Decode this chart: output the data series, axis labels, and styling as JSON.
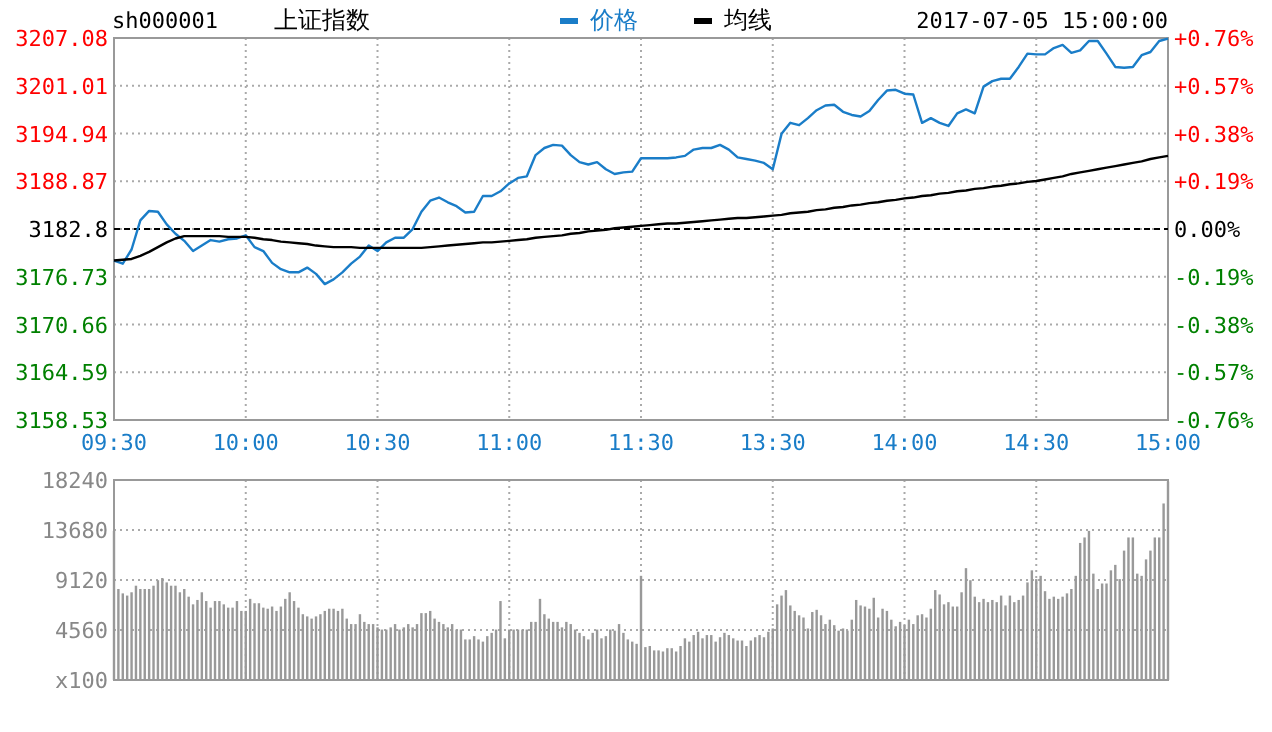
{
  "chart_data": [
    {
      "type": "line",
      "title": "上证指数",
      "subtitle": "sh000001",
      "annotations": [
        "2017-07-05 15:00:00"
      ],
      "legend": "top",
      "grid": true,
      "categories": [
        "09:30",
        null,
        null,
        null,
        null,
        null,
        null,
        null,
        null,
        null,
        null,
        null,
        null,
        null,
        null,
        "10:00",
        null,
        null,
        null,
        null,
        null,
        null,
        null,
        null,
        null,
        null,
        null,
        null,
        null,
        null,
        "10:30",
        null,
        null,
        null,
        null,
        null,
        null,
        null,
        null,
        null,
        null,
        null,
        null,
        null,
        null,
        "11:00",
        null,
        null,
        null,
        null,
        null,
        null,
        null,
        null,
        null,
        null,
        null,
        null,
        null,
        null,
        "11:30",
        null,
        null,
        null,
        null,
        null,
        null,
        null,
        null,
        null,
        null,
        null,
        null,
        null,
        null,
        "13:30",
        null,
        null,
        null,
        null,
        null,
        null,
        null,
        null,
        null,
        null,
        null,
        null,
        null,
        null,
        "14:00",
        null,
        null,
        null,
        null,
        null,
        null,
        null,
        null,
        null,
        null,
        null,
        null,
        null,
        null,
        "14:30",
        null,
        null,
        null,
        null,
        null,
        null,
        null,
        null,
        null,
        null,
        null,
        null,
        null,
        null,
        "15:00"
      ],
      "ylim": [
        3158.53,
        3207.08
      ],
      "yticks": [
        3158.53,
        3164.59,
        3170.66,
        3176.73,
        3182.8,
        3188.87,
        3194.94,
        3201.01,
        3207.08
      ],
      "y2lim": [
        -0.76,
        0.76
      ],
      "y2ticks": [
        {
          "value": -0.76,
          "label": "-0.76%"
        },
        {
          "value": -0.57,
          "label": "-0.57%"
        },
        {
          "value": -0.38,
          "label": "-0.38%"
        },
        {
          "value": -0.19,
          "label": "-0.19%"
        },
        {
          "value": 0,
          "label": "0.00%"
        },
        {
          "value": 0.19,
          "label": "+0.19%"
        },
        {
          "value": 0.38,
          "label": "+0.38%"
        },
        {
          "value": 0.57,
          "label": "+0.57%"
        },
        {
          "value": 0.76,
          "label": "+0.76%"
        }
      ],
      "ref_lines": [
        {
          "axis": "y",
          "value": 3182.8,
          "color": "#000000",
          "line_style": "dashed"
        }
      ],
      "series": [
        {
          "name": "价格",
          "color": "#1a7dc8",
          "values": [
            3178.8,
            3178.4,
            3180.2,
            3183.9,
            3185.1,
            3185.0,
            3183.4,
            3182.2,
            3181.3,
            3180.0,
            3180.7,
            3181.4,
            3181.2,
            3181.5,
            3181.6,
            3182.0,
            3180.5,
            3180.0,
            3178.5,
            3177.7,
            3177.3,
            3177.3,
            3177.9,
            3177.1,
            3175.8,
            3176.4,
            3177.3,
            3178.4,
            3179.3,
            3180.7,
            3180.0,
            3181.1,
            3181.7,
            3181.7,
            3182.8,
            3185.0,
            3186.4,
            3186.8,
            3186.2,
            3185.7,
            3184.9,
            3185.0,
            3187.0,
            3187.0,
            3187.6,
            3188.6,
            3189.3,
            3189.5,
            3192.2,
            3193.1,
            3193.5,
            3193.4,
            3192.2,
            3191.3,
            3191.0,
            3191.3,
            3190.4,
            3189.8,
            3190.0,
            3190.1,
            3191.8,
            3191.8,
            3191.8,
            3191.8,
            3191.9,
            3192.1,
            3192.9,
            3193.1,
            3193.1,
            3193.5,
            3192.9,
            3191.9,
            3191.7,
            3191.5,
            3191.2,
            3190.4,
            3194.9,
            3196.3,
            3196.0,
            3196.9,
            3197.9,
            3198.5,
            3198.6,
            3197.7,
            3197.3,
            3197.1,
            3197.8,
            3199.2,
            3200.4,
            3200.5,
            3200.0,
            3199.9,
            3196.3,
            3196.9,
            3196.3,
            3195.9,
            3197.5,
            3198.0,
            3197.5,
            3200.9,
            3201.6,
            3201.9,
            3201.9,
            3203.4,
            3205.1,
            3205.0,
            3205.0,
            3205.8,
            3206.2,
            3205.2,
            3205.5,
            3206.7,
            3206.7,
            3205.1,
            3203.4,
            3203.3,
            3203.4,
            3204.9,
            3205.3,
            3206.7,
            3207.0
          ]
        },
        {
          "name": "均线",
          "color": "#000000",
          "values": [
            3178.8,
            3178.9,
            3179.0,
            3179.4,
            3179.9,
            3180.5,
            3181.1,
            3181.6,
            3181.9,
            3181.9,
            3181.9,
            3181.9,
            3181.9,
            3181.8,
            3181.8,
            3181.8,
            3181.7,
            3181.5,
            3181.4,
            3181.2,
            3181.1,
            3181.0,
            3180.9,
            3180.7,
            3180.6,
            3180.5,
            3180.5,
            3180.5,
            3180.4,
            3180.4,
            3180.4,
            3180.4,
            3180.4,
            3180.4,
            3180.4,
            3180.4,
            3180.5,
            3180.6,
            3180.7,
            3180.8,
            3180.9,
            3181.0,
            3181.1,
            3181.1,
            3181.2,
            3181.3,
            3181.4,
            3181.5,
            3181.7,
            3181.8,
            3181.9,
            3182.0,
            3182.2,
            3182.3,
            3182.5,
            3182.6,
            3182.7,
            3182.9,
            3183.0,
            3183.1,
            3183.2,
            3183.3,
            3183.4,
            3183.5,
            3183.5,
            3183.6,
            3183.7,
            3183.8,
            3183.9,
            3184.0,
            3184.1,
            3184.2,
            3184.2,
            3184.3,
            3184.4,
            3184.5,
            3184.6,
            3184.8,
            3184.9,
            3185.0,
            3185.2,
            3185.3,
            3185.5,
            3185.6,
            3185.8,
            3185.9,
            3186.1,
            3186.2,
            3186.4,
            3186.5,
            3186.7,
            3186.8,
            3187.0,
            3187.1,
            3187.3,
            3187.4,
            3187.6,
            3187.7,
            3187.9,
            3188.0,
            3188.2,
            3188.3,
            3188.5,
            3188.6,
            3188.8,
            3188.9,
            3189.1,
            3189.3,
            3189.5,
            3189.8,
            3190.0,
            3190.2,
            3190.4,
            3190.6,
            3190.8,
            3191.0,
            3191.2,
            3191.4,
            3191.7,
            3191.9,
            3192.1
          ]
        }
      ]
    },
    {
      "type": "bar",
      "grid": true,
      "tick_labels": "y",
      "categories": [
        null,
        null,
        null,
        null,
        null,
        null,
        null,
        null,
        null,
        null,
        null,
        null,
        null,
        null,
        null,
        null,
        null,
        null,
        null,
        null,
        null,
        null,
        null,
        null,
        null,
        null,
        null,
        null,
        null,
        null,
        null,
        null,
        null,
        null,
        null,
        null,
        null,
        null,
        null,
        null,
        null,
        null,
        null,
        null,
        null,
        null,
        null,
        null,
        null,
        null,
        null,
        null,
        null,
        null,
        null,
        null,
        null,
        null,
        null,
        null,
        null,
        null,
        null,
        null,
        null,
        null,
        null,
        null,
        null,
        null,
        null,
        null,
        null,
        null,
        null,
        null,
        null,
        null,
        null,
        null,
        null,
        null,
        null,
        null,
        null,
        null,
        null,
        null,
        null,
        null,
        null,
        null,
        null,
        null,
        null,
        null,
        null,
        null,
        null,
        null,
        null,
        null,
        null,
        null,
        null,
        null,
        null,
        null,
        null,
        null,
        null,
        null,
        null,
        null,
        null,
        null,
        null,
        null,
        null,
        null,
        null,
        null,
        null,
        null,
        null,
        null,
        null,
        null,
        null,
        null,
        null,
        null,
        null,
        null,
        null,
        null,
        null,
        null,
        null,
        null,
        null,
        null,
        null,
        null,
        null,
        null,
        null,
        null,
        null,
        null,
        null,
        null,
        null,
        null,
        null,
        null,
        null,
        null,
        null,
        null,
        null,
        null,
        null,
        null,
        null,
        null,
        null,
        null,
        null,
        null,
        null,
        null,
        null,
        null,
        null,
        null,
        null,
        null,
        null,
        null,
        null,
        null,
        null,
        null,
        null,
        null,
        null,
        null,
        null,
        null,
        null,
        null,
        null,
        null,
        null,
        null,
        null,
        null,
        null,
        null,
        null,
        null,
        null,
        null,
        null,
        null,
        null,
        null,
        null,
        null,
        null,
        null,
        null,
        null,
        null,
        null,
        null,
        null,
        null,
        null,
        null,
        null,
        null,
        null,
        null,
        null,
        null,
        null,
        null,
        null,
        null,
        null,
        null,
        null,
        null,
        null,
        null,
        null,
        null,
        null,
        null
      ],
      "ylim": [
        0,
        18240
      ],
      "yticks": [
        {
          "value": 0,
          "label": "x100"
        },
        4560,
        9120,
        13680,
        18240
      ],
      "series": [
        {
          "color": "#999999",
          "values": [
            13600,
            8300,
            7900,
            7700,
            8000,
            8600,
            8300,
            8300,
            8300,
            8600,
            9100,
            9300,
            8900,
            8600,
            8600,
            8000,
            8300,
            7600,
            6900,
            7300,
            8000,
            7200,
            6600,
            7200,
            7200,
            6900,
            6600,
            6600,
            7200,
            6300,
            6300,
            7400,
            7000,
            7000,
            6600,
            6500,
            6700,
            6300,
            6700,
            7400,
            8000,
            7200,
            6600,
            6000,
            5800,
            5600,
            5800,
            6000,
            6300,
            6500,
            6500,
            6300,
            6500,
            5600,
            5100,
            5100,
            6000,
            5300,
            5100,
            5100,
            4800,
            4600,
            4600,
            4800,
            5100,
            4600,
            4800,
            5100,
            4800,
            5100,
            6100,
            6100,
            6300,
            5600,
            5300,
            5100,
            4800,
            5100,
            4600,
            4600,
            3700,
            3700,
            4000,
            3700,
            3500,
            4000,
            4300,
            4600,
            7200,
            3800,
            4600,
            4600,
            4600,
            4600,
            4600,
            5300,
            5300,
            7400,
            6000,
            5600,
            5300,
            5300,
            4800,
            5300,
            5100,
            4600,
            4300,
            4000,
            3700,
            4300,
            4600,
            3800,
            4000,
            4600,
            4500,
            5100,
            4300,
            3700,
            3500,
            3300,
            9500,
            3000,
            3100,
            2700,
            2700,
            2600,
            2900,
            2900,
            2600,
            3100,
            3800,
            3500,
            4100,
            4400,
            3800,
            4100,
            4100,
            3500,
            3900,
            4300,
            4100,
            3800,
            3600,
            3600,
            3100,
            3600,
            3900,
            4100,
            3900,
            4400,
            4700,
            6900,
            7700,
            8200,
            6800,
            6300,
            5900,
            5700,
            4700,
            6200,
            6400,
            5900,
            5100,
            5500,
            5000,
            4500,
            4700,
            4500,
            5500,
            7300,
            6800,
            6700,
            6500,
            7500,
            5700,
            6500,
            6300,
            5500,
            4900,
            5300,
            5000,
            5500,
            5100,
            5900,
            6000,
            5700,
            6500,
            8200,
            7800,
            6900,
            7100,
            6700,
            6700,
            8000,
            10200,
            9100,
            7600,
            7100,
            7400,
            7100,
            7300,
            7100,
            7700,
            6800,
            7700,
            7100,
            7300,
            7700,
            8900,
            10000,
            9200,
            9500,
            8100,
            7400,
            7600,
            7400,
            7600,
            7900,
            8300,
            9500,
            12500,
            13000,
            13600,
            9700,
            8300,
            8800,
            8800,
            10000,
            10500,
            9200,
            11800,
            13000,
            13000,
            9700,
            9500,
            11000,
            11800,
            13000,
            13000,
            16100,
            18100
          ]
        }
      ]
    }
  ]
}
